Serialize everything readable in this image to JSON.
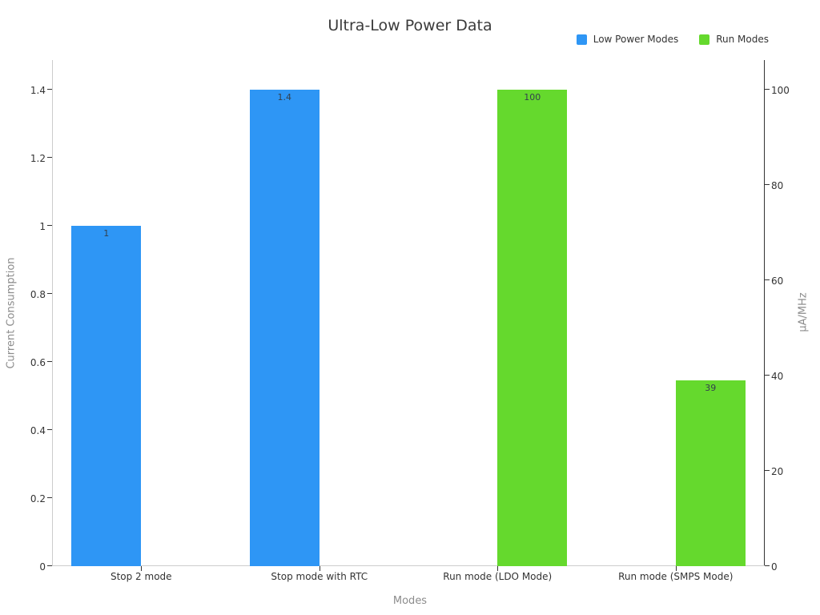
{
  "chart_data": {
    "type": "bar",
    "title": "Ultra-Low Power Data",
    "xlabel": "Modes",
    "categories": [
      "Stop 2 mode",
      "Stop mode with RTC",
      "Run mode (LDO Mode)",
      "Run mode (SMPS Mode)"
    ],
    "series": [
      {
        "name": "Low Power Modes",
        "color": "#2e96f5",
        "axis": "left",
        "values": [
          1,
          1.4,
          null,
          null
        ]
      },
      {
        "name": "Run Modes",
        "color": "#65d92d",
        "axis": "right",
        "values": [
          null,
          null,
          100,
          39
        ]
      }
    ],
    "bar_value_labels": [
      "1",
      "1.4",
      "100",
      "39"
    ],
    "y_left": {
      "label": "Current Consumption",
      "min": 0,
      "max": 1.4,
      "ticks": [
        0,
        0.2,
        0.4,
        0.6,
        0.8,
        1,
        1.2,
        1.4
      ]
    },
    "y_right": {
      "label": "µA/MHz",
      "min": 0,
      "max": 100,
      "ticks": [
        0,
        20,
        40,
        60,
        80,
        100
      ]
    },
    "grid": false,
    "legend_position": "top-right",
    "background_color": "#ffffff"
  }
}
